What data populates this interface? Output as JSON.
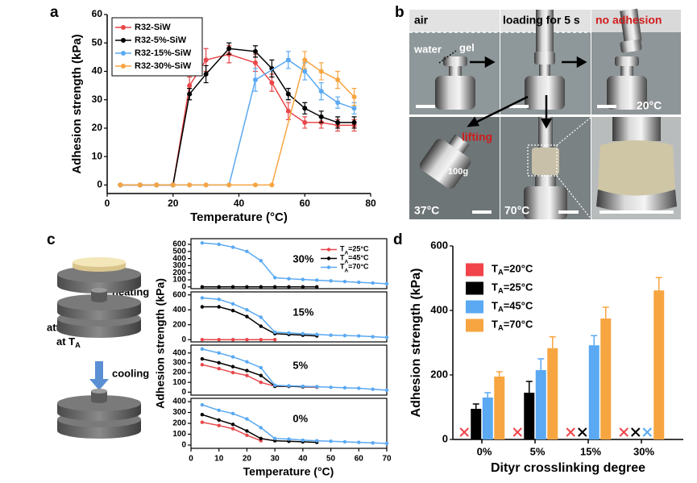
{
  "panel_labels": [
    "a",
    "b",
    "c",
    "d"
  ],
  "chart_data": [
    {
      "type": "line",
      "xlabel": "Temperature (°C)",
      "ylabel": "Adhesion strength (kPa)",
      "xlim": [
        0,
        80
      ],
      "xticks": [
        0,
        20,
        40,
        60,
        80
      ],
      "ylim": [
        -3,
        60
      ],
      "yticks": [
        0,
        10,
        20,
        30,
        40,
        50,
        60
      ],
      "legend": "upper left",
      "series": [
        {
          "name": "R32-SiW",
          "color": "#e8474a",
          "x": [
            4,
            10,
            15,
            20,
            25,
            30,
            37,
            45,
            50,
            55,
            60,
            65,
            70,
            75
          ],
          "values": [
            0,
            0,
            0,
            0,
            35,
            44,
            46,
            43,
            36,
            26,
            22,
            22,
            21,
            21
          ],
          "errors": [
            0,
            0,
            0,
            0,
            3,
            4,
            3,
            3,
            3,
            3,
            2,
            2,
            2,
            2
          ]
        },
        {
          "name": "R32-5%-SiW",
          "color": "#000000",
          "x": [
            4,
            10,
            15,
            20,
            25,
            30,
            37,
            45,
            50,
            55,
            60,
            65,
            70,
            75
          ],
          "values": [
            0,
            0,
            0,
            0,
            32,
            39,
            48,
            47,
            41,
            32,
            27,
            24,
            22,
            22
          ],
          "errors": [
            0,
            0,
            0,
            0,
            2,
            3,
            2,
            2,
            3,
            2,
            2,
            2,
            2,
            2
          ]
        },
        {
          "name": "R32-15%-SiW",
          "color": "#5aa9f2",
          "x": [
            4,
            10,
            15,
            20,
            25,
            30,
            37,
            45,
            55,
            60,
            65,
            70,
            75
          ],
          "values": [
            0,
            0,
            0,
            0,
            0,
            0,
            0,
            37,
            44,
            40,
            33,
            29,
            27
          ],
          "errors": [
            0,
            0,
            0,
            0,
            0,
            0,
            0,
            4,
            3,
            3,
            3,
            2,
            2
          ]
        },
        {
          "name": "R32-30%-SiW",
          "color": "#f7a541",
          "x": [
            4,
            10,
            15,
            20,
            25,
            30,
            37,
            45,
            50,
            60,
            65,
            70,
            75
          ],
          "values": [
            0,
            0,
            0,
            0,
            0,
            0,
            0,
            0,
            0,
            44,
            40,
            37,
            31
          ],
          "errors": [
            0,
            0,
            0,
            0,
            0,
            0,
            0,
            0,
            0,
            3,
            3,
            3,
            3
          ]
        }
      ]
    },
    {
      "type": "line",
      "title": "30%",
      "x": [
        4,
        10,
        15,
        20,
        25,
        30,
        35,
        40,
        45,
        50,
        55,
        60,
        65,
        70
      ],
      "xlim": [
        0,
        70
      ],
      "ylim": [
        -25,
        680
      ],
      "yticks": [
        0,
        100,
        200,
        300,
        400,
        500,
        600
      ],
      "legend": "upper right",
      "series": [
        {
          "name": "TA=25°C",
          "color": "#e8474a",
          "values": [
            0,
            0,
            0,
            0,
            0,
            0,
            0,
            0,
            0,
            null,
            null,
            null,
            null,
            null
          ]
        },
        {
          "name": "TA=45°C",
          "color": "#000000",
          "values": [
            0,
            0,
            0,
            0,
            0,
            0,
            0,
            0,
            0,
            null,
            null,
            null,
            null,
            null
          ]
        },
        {
          "name": "TA=70°C",
          "color": "#5aa9f2",
          "values": [
            620,
            600,
            560,
            500,
            370,
            130,
            115,
            105,
            95,
            85,
            75,
            65,
            55,
            45
          ]
        }
      ]
    },
    {
      "type": "line",
      "title": "15%",
      "x": [
        4,
        10,
        15,
        20,
        25,
        30,
        35,
        40,
        45,
        50,
        55,
        60,
        65,
        70
      ],
      "xlim": [
        0,
        70
      ],
      "ylim": [
        -30,
        640
      ],
      "yticks": [
        0,
        200,
        400,
        600
      ],
      "series": [
        {
          "color": "#e8474a",
          "values": [
            0,
            0,
            0,
            0,
            0,
            0,
            null,
            null,
            null,
            null,
            null,
            null,
            null,
            null
          ]
        },
        {
          "color": "#000000",
          "values": [
            440,
            440,
            390,
            310,
            180,
            80,
            70,
            60,
            50,
            null,
            null,
            null,
            null,
            null
          ]
        },
        {
          "color": "#5aa9f2",
          "values": [
            560,
            540,
            480,
            400,
            300,
            100,
            90,
            80,
            70,
            60,
            55,
            50,
            40,
            30
          ]
        }
      ]
    },
    {
      "type": "line",
      "title": "5%",
      "x": [
        4,
        10,
        15,
        20,
        25,
        30,
        35,
        40,
        45,
        50,
        55,
        60,
        65,
        70
      ],
      "xlim": [
        0,
        70
      ],
      "ylim": [
        -30,
        480
      ],
      "yticks": [
        0,
        100,
        200,
        300,
        400
      ],
      "series": [
        {
          "color": "#e8474a",
          "values": [
            280,
            240,
            200,
            170,
            100,
            60,
            60,
            55,
            50,
            null,
            null,
            null,
            null,
            null
          ]
        },
        {
          "color": "#000000",
          "values": [
            340,
            300,
            260,
            220,
            170,
            60,
            60,
            55,
            55,
            null,
            null,
            null,
            null,
            null
          ]
        },
        {
          "color": "#5aa9f2",
          "values": [
            440,
            400,
            360,
            310,
            250,
            70,
            65,
            60,
            55,
            50,
            45,
            40,
            30,
            20
          ]
        }
      ]
    },
    {
      "type": "line",
      "title": "0%",
      "x": [
        4,
        10,
        15,
        20,
        25,
        30,
        35,
        40,
        45,
        50,
        55,
        60,
        65,
        70
      ],
      "xlim": [
        0,
        70
      ],
      "xticks": [
        0,
        10,
        20,
        30,
        40,
        50,
        60,
        70
      ],
      "ylim": [
        -30,
        430
      ],
      "yticks": [
        0,
        100,
        200,
        300,
        400
      ],
      "series": [
        {
          "color": "#e8474a",
          "values": [
            210,
            180,
            150,
            90,
            40,
            null,
            null,
            null,
            null,
            null,
            null,
            null,
            null,
            null
          ]
        },
        {
          "color": "#000000",
          "values": [
            280,
            230,
            190,
            130,
            60,
            40,
            35,
            30,
            25,
            null,
            null,
            null,
            null,
            null
          ]
        },
        {
          "color": "#5aa9f2",
          "values": [
            370,
            320,
            290,
            240,
            160,
            60,
            55,
            45,
            40,
            35,
            30,
            25,
            20,
            15
          ]
        }
      ]
    },
    {
      "type": "bar",
      "xlabel": "Dityr crosslinking degree",
      "ylabel": "Adhesion strength (kPa)",
      "categories": [
        "0%",
        "5%",
        "15%",
        "30%"
      ],
      "ylim": [
        0,
        600
      ],
      "yticks": [
        0,
        200,
        400,
        600
      ],
      "legend": "upper left",
      "series": [
        {
          "name": "TA=20°C",
          "color": "#f0444a",
          "values": [
            null,
            null,
            null,
            null
          ],
          "errors": [
            null,
            null,
            null,
            null
          ]
        },
        {
          "name": "TA=25°C",
          "color": "#000000",
          "values": [
            95,
            145,
            null,
            null
          ],
          "errors": [
            15,
            35,
            null,
            null
          ]
        },
        {
          "name": "TA=45°C",
          "color": "#5aa9f2",
          "values": [
            130,
            215,
            292,
            null
          ],
          "errors": [
            15,
            35,
            30,
            null
          ]
        },
        {
          "name": "TA=70°C",
          "color": "#f7a541",
          "values": [
            195,
            283,
            375,
            462
          ],
          "errors": [
            15,
            35,
            35,
            40
          ]
        }
      ]
    }
  ],
  "panel_c": {
    "xlabel": "Temperature (°C)",
    "ylabel": "Adhesion strength (kPa)"
  },
  "photo_panel": {
    "air": "air",
    "water": "water",
    "gel": "gel",
    "loading": "loading for 5 s",
    "no_adhesion": "no adhesion",
    "t20": "20°C",
    "lifting": "lifting",
    "weight": "100g",
    "t37": "37°C",
    "t70": "70°C"
  },
  "diagram": {
    "heating": "heating",
    "attaching": "attaching",
    "at": "at TA",
    "cooling": "cooling"
  }
}
